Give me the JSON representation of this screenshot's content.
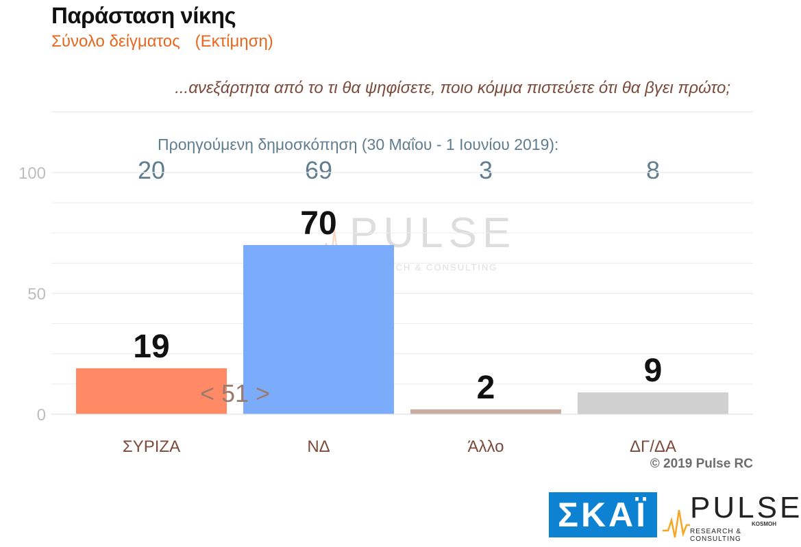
{
  "header": {
    "title": "Παράσταση νίκης",
    "subtitle": "Σύνολο δείγματος",
    "subtitle_note": "(Εκτίμηση)",
    "question": "...ανεξάρτητα από το τι θα ψηφίσετε, ποιο κόμμα πιστεύετε ότι θα βγει πρώτο;"
  },
  "previous_poll": {
    "label": "Προηγούμενη δημοσκόπηση (30 Μαΐου - 1 Ιουνίου 2019):",
    "values": [
      "20",
      "69",
      "3",
      "8"
    ]
  },
  "chart_data": {
    "type": "bar",
    "categories": [
      "ΣΥΡΙΖΑ",
      "ΝΔ",
      "Άλλο",
      "ΔΓ/ΔΑ"
    ],
    "values": [
      19,
      70,
      2,
      9
    ],
    "colors": [
      "#ff8a65",
      "#7aacfb",
      "#c9aca2",
      "#d0d0d0"
    ],
    "ylim": [
      0,
      100
    ],
    "yticks": [
      0,
      50,
      100
    ],
    "gap_annotation": "< 51 >",
    "grid": true
  },
  "footer": {
    "copyright": "© 2019 Pulse RC"
  },
  "logos": {
    "skai": "ΣΚΑΪ",
    "pulse": "PULSE",
    "pulse_tag": "KOSMOH",
    "pulse_sub": "RESEARCH & CONSULTING"
  }
}
